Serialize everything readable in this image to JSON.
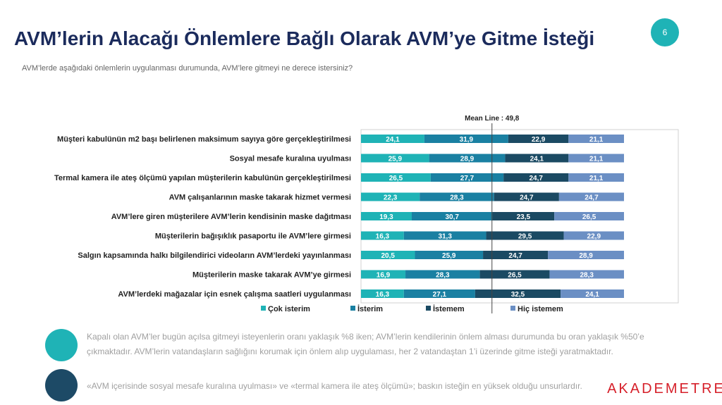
{
  "chart_data": {
    "type": "stacked-bar-horizontal",
    "title": "AVM’lerin Alacağı Önlemlere Bağlı Olarak AVM’ye Gitme İsteği",
    "subtitle": "AVM’lerde aşağıdaki önlemlerin uygulanması durumunda, AVM’lere gitmeyi ne derece istersiniz?",
    "page": "6",
    "categories": [
      "Müşteri kabulünün m2 başı belirlenen maksimum sayıya göre gerçekleştirilmesi",
      "Sosyal mesafe kuralına uyulması",
      "Termal kamera ile ateş ölçümü yapılan müşterilerin kabulünün gerçekleştirilmesi",
      "AVM çalışanlarının maske takarak hizmet vermesi",
      "AVM’lere giren müşterilere AVM’lerin kendisinin maske dağıtması",
      "Müşterilerin bağışıklık pasaportu ile AVM’lere girmesi",
      "Salgın kapsamında halkı bilgilendirici videoların AVM’lerdeki yayınlanması",
      "Müşterilerin maske takarak AVM’ye girmesi",
      "AVM’lerdeki mağazalar için esnek çalışma saatleri uygulanması"
    ],
    "series": [
      {
        "name": "Çok isterim",
        "color": "#1fb3b6",
        "values": [
          24.1,
          25.9,
          26.5,
          22.3,
          19.3,
          16.3,
          20.5,
          16.9,
          16.3
        ],
        "value_labels": [
          "24,1",
          "25,9",
          "26,5",
          "22,3",
          "19,3",
          "16,3",
          "20,5",
          "16,9",
          "16,3"
        ]
      },
      {
        "name": "İsterim",
        "color": "#1a80a2",
        "values": [
          31.9,
          28.9,
          27.7,
          28.3,
          30.7,
          31.3,
          25.9,
          28.3,
          27.1
        ],
        "value_labels": [
          "31,9",
          "28,9",
          "27,7",
          "28,3",
          "30,7",
          "31,3",
          "25,9",
          "28,3",
          "27,1"
        ]
      },
      {
        "name": "İstemem",
        "color": "#1b4a63",
        "values": [
          22.9,
          24.1,
          24.7,
          24.7,
          23.5,
          29.5,
          24.7,
          26.5,
          32.5
        ],
        "value_labels": [
          "22,9",
          "24,1",
          "24,7",
          "24,7",
          "23,5",
          "29,5",
          "24,7",
          "26,5",
          "32,5"
        ]
      },
      {
        "name": "Hiç istemem",
        "color": "#6b8fc4",
        "values": [
          21.1,
          21.1,
          21.1,
          24.7,
          26.5,
          22.9,
          28.9,
          28.3,
          24.1
        ],
        "value_labels": [
          "21,1",
          "21,1",
          "21,1",
          "24,7",
          "26,5",
          "22,9",
          "28,9",
          "28,3",
          "24,1"
        ]
      }
    ],
    "xlim": [
      0,
      100
    ],
    "mean_line": {
      "value": 49.8,
      "label": "Mean Line : 49,8"
    }
  },
  "notes": [
    "Kapalı olan AVM’ler bugün açılsa gitmeyi isteyenlerin oranı yaklaşık %8 iken; AVM’lerin kendilerinin önlem alması durumunda bu oran yaklaşık %50’e çıkmaktadır. AVM’lerin vatandaşların sağlığını korumak için önlem alıp uygulaması, her 2 vatandaştan 1’i üzerinde gitme isteği yaratmaktadır.",
    "«AVM içerisinde sosyal mesafe kuralına uyulması» ve «termal kamera ile ateş ölçümü»; baskın isteğin en yüksek olduğu unsurlardır."
  ],
  "logo": "AKADEMETRE"
}
